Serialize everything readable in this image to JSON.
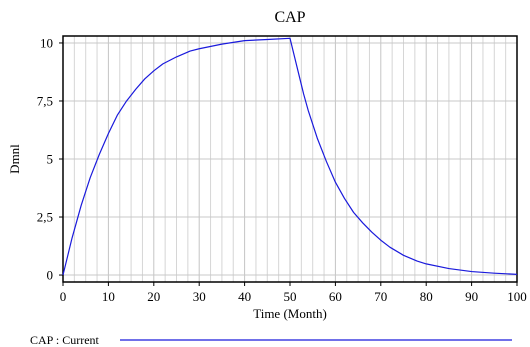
{
  "chart_data": {
    "type": "line",
    "title": "CAP",
    "xlabel": "Time (Month)",
    "ylabel": "Dmnl",
    "xlim": [
      0,
      100
    ],
    "ylim": [
      -0.3,
      10.3
    ],
    "grid": true,
    "x_ticks": [
      0,
      10,
      20,
      30,
      40,
      50,
      60,
      70,
      80,
      90,
      100
    ],
    "x_tick_labels": [
      "0",
      "10",
      "20",
      "30",
      "40",
      "50",
      "60",
      "70",
      "80",
      "90",
      "100"
    ],
    "y_ticks": [
      0,
      2.5,
      5,
      7.5,
      10
    ],
    "y_tick_labels": [
      "0",
      "2,5",
      "5",
      "7,5",
      "10"
    ],
    "series": [
      {
        "name": "CAP : Current",
        "color": "#1a1adc",
        "x": [
          0,
          1,
          2,
          3,
          4,
          5,
          6,
          8,
          10,
          12,
          14,
          16,
          18,
          20,
          22,
          25,
          28,
          30,
          35,
          40,
          45,
          50,
          51,
          52,
          53,
          54,
          55,
          56,
          58,
          60,
          62,
          64,
          66,
          68,
          70,
          72,
          75,
          78,
          80,
          85,
          90,
          95,
          100
        ],
        "y": [
          0,
          0.8,
          1.6,
          2.3,
          3.0,
          3.6,
          4.2,
          5.2,
          6.1,
          6.9,
          7.5,
          8.0,
          8.45,
          8.8,
          9.1,
          9.4,
          9.65,
          9.75,
          9.95,
          10.1,
          10.15,
          10.2,
          9.4,
          8.6,
          7.8,
          7.1,
          6.5,
          5.9,
          4.9,
          4.0,
          3.3,
          2.7,
          2.25,
          1.85,
          1.5,
          1.2,
          0.85,
          0.6,
          0.48,
          0.28,
          0.15,
          0.08,
          0.03
        ]
      }
    ],
    "legend": "bottom-left"
  }
}
